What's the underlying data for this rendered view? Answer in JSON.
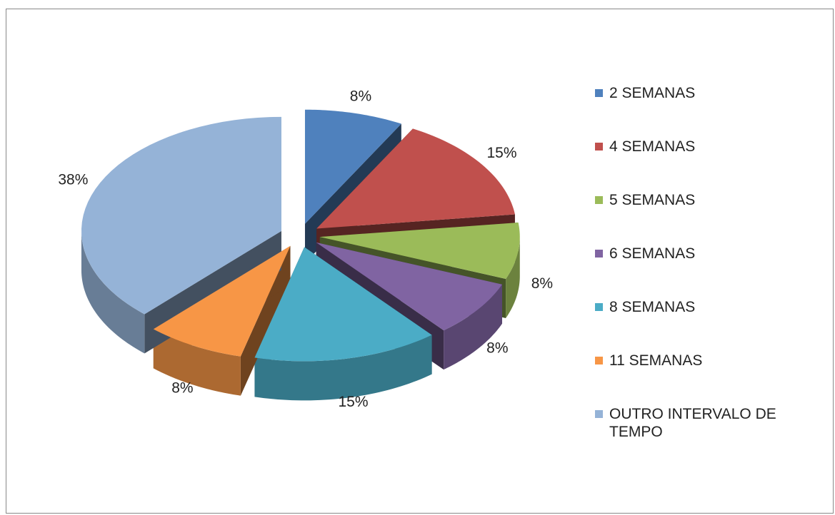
{
  "chart_data": {
    "type": "pie",
    "categories": [
      "2 SEMANAS",
      "4 SEMANAS",
      "5 SEMANAS",
      "6 SEMANAS",
      "8 SEMANAS",
      "11 SEMANAS",
      "OUTRO INTERVALO DE TEMPO"
    ],
    "values": [
      8,
      15,
      8,
      8,
      15,
      8,
      38
    ],
    "value_labels": [
      "8%",
      "15%",
      "8%",
      "8%",
      "15%",
      "8%",
      "38%"
    ],
    "colors": [
      "#4f81bd",
      "#c0504d",
      "#9bbb59",
      "#8064a2",
      "#4bacc6",
      "#f79646",
      "#95b3d7"
    ],
    "legend": "right"
  }
}
